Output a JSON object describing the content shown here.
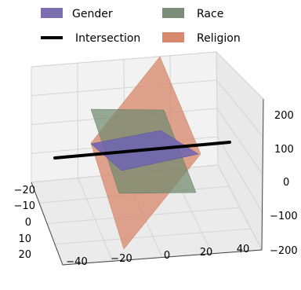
{
  "chart_data": {
    "type": "surface3d",
    "title": "",
    "legend": {
      "placement": "top",
      "items": [
        {
          "label": "Gender",
          "color": "#7b6fb0",
          "kind": "patch"
        },
        {
          "label": "Race",
          "color": "#7a8e7a",
          "kind": "patch"
        },
        {
          "label": "Intersection",
          "color": "#000000",
          "kind": "line"
        },
        {
          "label": "Religion",
          "color": "#d98a6e",
          "kind": "patch"
        }
      ]
    },
    "axes": {
      "x": {
        "ticks": [
          "−40",
          "−20",
          "0",
          "20",
          "40"
        ],
        "range": [
          -50,
          50
        ]
      },
      "y": {
        "ticks": [
          "−20",
          "−10",
          "0",
          "10",
          "20"
        ],
        "range": [
          -25,
          25
        ]
      },
      "z": {
        "ticks": [
          "200",
          "100",
          "0",
          "−100",
          "−200"
        ],
        "range": [
          -250,
          250
        ]
      }
    },
    "planes": [
      {
        "name": "Religion",
        "color": "#d98a6e",
        "opacity": 0.75
      },
      {
        "name": "Race",
        "color": "#6f8a6f",
        "opacity": 0.75
      },
      {
        "name": "Gender",
        "color": "#6f64b0",
        "opacity": 0.85
      }
    ],
    "line": {
      "name": "Intersection",
      "color": "#000000"
    },
    "grid": true
  }
}
